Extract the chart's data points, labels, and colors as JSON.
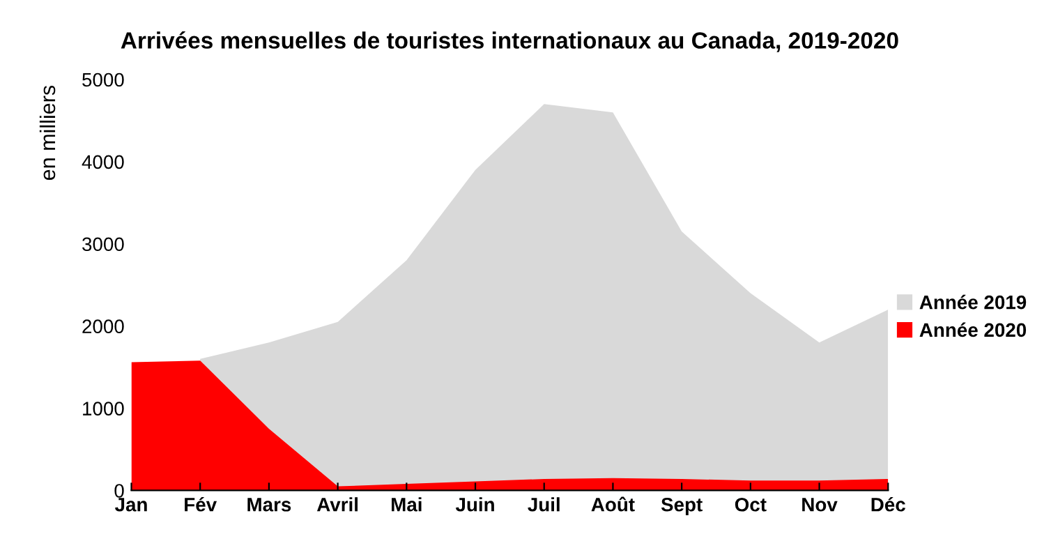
{
  "chart_data": {
    "type": "area",
    "title": "Arrivées mensuelles de touristes internationaux au Canada, 2019-2020",
    "ylabel": "en milliers",
    "categories": [
      "Jan",
      "Fév",
      "Mars",
      "Avril",
      "Mai",
      "Juin",
      "Juil",
      "Août",
      "Sept",
      "Oct",
      "Nov",
      "Déc"
    ],
    "series": [
      {
        "name": "Année 2019",
        "color": "#d9d9d9",
        "values": [
          null,
          1600,
          1800,
          2050,
          2800,
          3900,
          4700,
          4600,
          3150,
          2400,
          1800,
          2200
        ]
      },
      {
        "name": "Année 2020",
        "color": "#ff0000",
        "values": [
          1560,
          1580,
          750,
          50,
          80,
          110,
          140,
          150,
          140,
          120,
          120,
          140
        ]
      }
    ],
    "ylim": [
      0,
      5000
    ],
    "yticks": [
      0,
      1000,
      2000,
      3000,
      4000,
      5000
    ],
    "grid": false,
    "legend": "right"
  }
}
